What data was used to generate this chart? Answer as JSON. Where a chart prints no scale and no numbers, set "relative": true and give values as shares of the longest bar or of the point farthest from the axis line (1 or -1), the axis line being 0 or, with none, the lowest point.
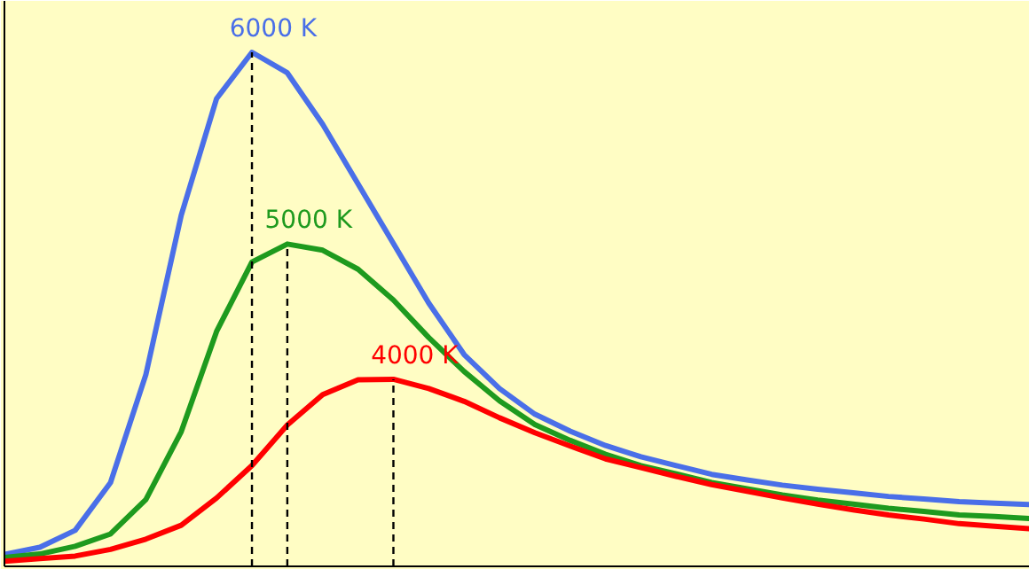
{
  "chart_data": {
    "type": "line",
    "relative": true,
    "categories": [
      null,
      null,
      null,
      null,
      null,
      null,
      null,
      null,
      null,
      null,
      null,
      null,
      null,
      null,
      null,
      null,
      null,
      null,
      null,
      null,
      null,
      null,
      null,
      null,
      null,
      null,
      null,
      null,
      null,
      null
    ],
    "series": [
      {
        "name": "6000 K",
        "color": "#4a6fe8",
        "values": [
          0.023,
          0.037,
          0.07,
          0.163,
          0.373,
          0.683,
          0.91,
          1,
          0.96,
          0.86,
          0.744,
          0.628,
          0.512,
          0.412,
          0.346,
          0.296,
          0.263,
          0.235,
          0.213,
          0.196,
          0.179,
          0.168,
          0.158,
          0.15,
          0.143,
          0.136,
          0.131,
          0.126,
          0.123,
          0.12
        ]
      },
      {
        "name": "5000 K",
        "color": "#1e9a1e",
        "values": [
          0.017,
          0.024,
          0.039,
          0.063,
          0.13,
          0.262,
          0.457,
          0.592,
          0.627,
          0.615,
          0.578,
          0.518,
          0.445,
          0.379,
          0.322,
          0.276,
          0.245,
          0.218,
          0.196,
          0.18,
          0.163,
          0.151,
          0.139,
          0.129,
          0.121,
          0.113,
          0.107,
          0.1,
          0.097,
          0.093
        ]
      },
      {
        "name": "4000 K",
        "color": "#ff0000",
        "values": [
          0.01,
          0.015,
          0.02,
          0.033,
          0.053,
          0.08,
          0.133,
          0.196,
          0.275,
          0.334,
          0.363,
          0.364,
          0.346,
          0.321,
          0.289,
          0.26,
          0.234,
          0.209,
          0.192,
          0.175,
          0.159,
          0.146,
          0.133,
          0.121,
          0.11,
          0.1,
          0.092,
          0.083,
          0.078,
          0.073
        ]
      }
    ]
  }
}
